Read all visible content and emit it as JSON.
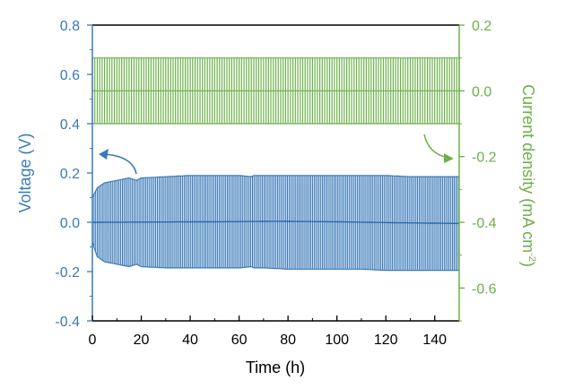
{
  "chart_data": {
    "type": "line",
    "title": "",
    "xlabel": "Time (h)",
    "ylabel_left": "Voltage (V)",
    "ylabel_right": "Current density (mA cm⁻²)",
    "ylabel_right_main": "Current density (mA cm",
    "ylabel_right_sup": "-2",
    "ylabel_right_close": ")",
    "xlim": [
      0,
      150
    ],
    "ylim_left": [
      -0.4,
      0.8
    ],
    "ylim_right": [
      -0.7,
      0.2
    ],
    "x_ticks": [
      0,
      20,
      40,
      60,
      80,
      100,
      120,
      140
    ],
    "x_tick_labels": [
      "0",
      "20",
      "40",
      "60",
      "80",
      "100",
      "120",
      "140"
    ],
    "y_left_ticks": [
      -0.4,
      -0.2,
      0.0,
      0.2,
      0.4,
      0.6,
      0.8
    ],
    "y_left_tick_labels": [
      "-0.4",
      "-0.2",
      "0.0",
      "0.2",
      "0.4",
      "0.6",
      "0.8"
    ],
    "y_right_ticks": [
      -0.6,
      -0.4,
      -0.2,
      0.0,
      0.2
    ],
    "y_right_tick_labels": [
      "-0.6",
      "-0.4",
      "-0.2",
      "0.0",
      "0.2"
    ],
    "grid": false,
    "colors": {
      "voltage": "#3a7ab8",
      "current": "#6db04a",
      "frame": "#000000"
    },
    "series": [
      {
        "axis": "left",
        "style": "oscillating-band",
        "envelope_time_h": [
          0,
          2,
          5,
          10,
          15,
          18,
          20,
          30,
          40,
          50,
          60,
          65,
          66,
          70,
          80,
          90,
          100,
          110,
          120,
          130,
          140,
          150
        ],
        "envelope_upper_V": [
          0.1,
          0.14,
          0.16,
          0.17,
          0.18,
          0.17,
          0.18,
          0.185,
          0.19,
          0.19,
          0.19,
          0.185,
          0.19,
          0.19,
          0.19,
          0.19,
          0.19,
          0.19,
          0.19,
          0.185,
          0.185,
          0.185
        ],
        "envelope_lower_V": [
          -0.08,
          -0.14,
          -0.16,
          -0.17,
          -0.18,
          -0.17,
          -0.18,
          -0.185,
          -0.185,
          -0.185,
          -0.185,
          -0.18,
          -0.185,
          -0.185,
          -0.19,
          -0.19,
          -0.19,
          -0.19,
          -0.195,
          -0.195,
          -0.195,
          -0.195
        ],
        "center_time_h": [
          0,
          50,
          75,
          100,
          125,
          150
        ],
        "center_V": [
          0.0,
          0.002,
          0.004,
          0.002,
          -0.002,
          -0.005
        ]
      },
      {
        "axis": "right",
        "style": "square-wave",
        "amplitude_mA_cm2": 0.1,
        "time_h": [
          0,
          150
        ]
      }
    ],
    "annotations": [
      {
        "type": "arrow",
        "points_to": "left axis",
        "color": "voltage"
      },
      {
        "type": "arrow",
        "points_to": "right axis",
        "color": "current"
      }
    ]
  }
}
